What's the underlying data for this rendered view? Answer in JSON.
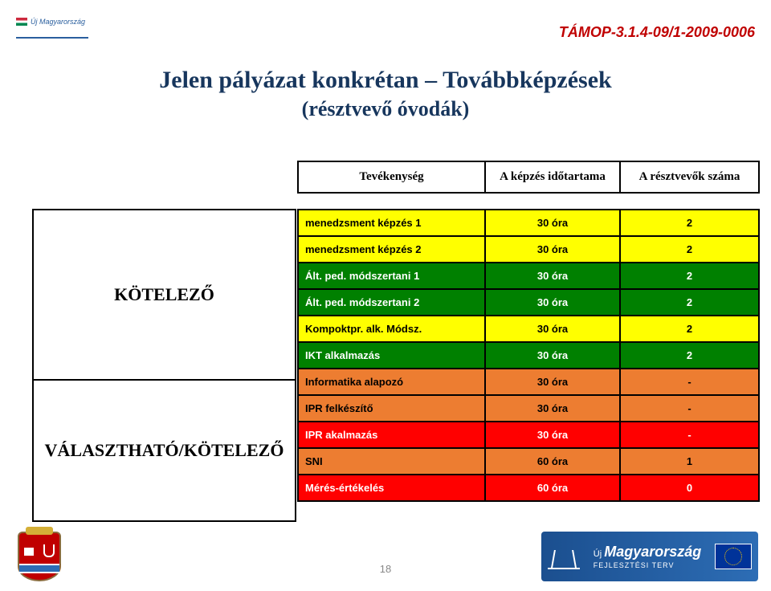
{
  "project_id": "TÁMOP-3.1.4-09/1-2009-0006",
  "top_logo_text": "Új Magyarország",
  "title_line1": "Jelen pályázat konkrétan – Továbbképzések",
  "title_line2": "(résztvevő óvodák)",
  "header": {
    "c1": "Tevékenység",
    "c2": "A képzés időtartama",
    "c3": "A résztvevők száma"
  },
  "categories": {
    "kotelezo": "KÖTELEZŐ",
    "valaszthato": "VÁLASZTHATÓ/KÖTELEZŐ"
  },
  "colors": {
    "yellow": "#ffff00",
    "green": "#008000",
    "orange": "#ed7d31",
    "red": "#ff0000"
  },
  "rows": [
    {
      "activity": "menedzsment képzés 1",
      "duration": "30 óra",
      "count": "2",
      "bg": "yellow"
    },
    {
      "activity": "menedzsment képzés 2",
      "duration": "30 óra",
      "count": "2",
      "bg": "yellow"
    },
    {
      "activity": "Ált. ped. módszertani 1",
      "duration": "30 óra",
      "count": "2",
      "bg": "green"
    },
    {
      "activity": "Ált. ped. módszertani 2",
      "duration": "30 óra",
      "count": "2",
      "bg": "green"
    },
    {
      "activity": "Kompoktpr. alk. Módsz.",
      "duration": "30 óra",
      "count": "2",
      "bg": "yellow"
    },
    {
      "activity": "IKT alkalmazás",
      "duration": "30 óra",
      "count": "2",
      "bg": "green"
    },
    {
      "activity": "Informatika alapozó",
      "duration": "30 óra",
      "count": "-",
      "bg": "orange"
    },
    {
      "activity": "IPR felkészítő",
      "duration": "30 óra",
      "count": "-",
      "bg": "orange"
    },
    {
      "activity": "IPR akalmazás",
      "duration": "30 óra",
      "count": "-",
      "bg": "red"
    },
    {
      "activity": "SNI",
      "duration": "60 óra",
      "count": "1",
      "bg": "orange"
    },
    {
      "activity": "Mérés-értékelés",
      "duration": "60 óra",
      "count": "0",
      "bg": "red"
    }
  ],
  "page_number": "18",
  "footer_brand": "Magyarország",
  "footer_prefix": "Új",
  "footer_sub": "FEJLESZTÉSI TERV"
}
